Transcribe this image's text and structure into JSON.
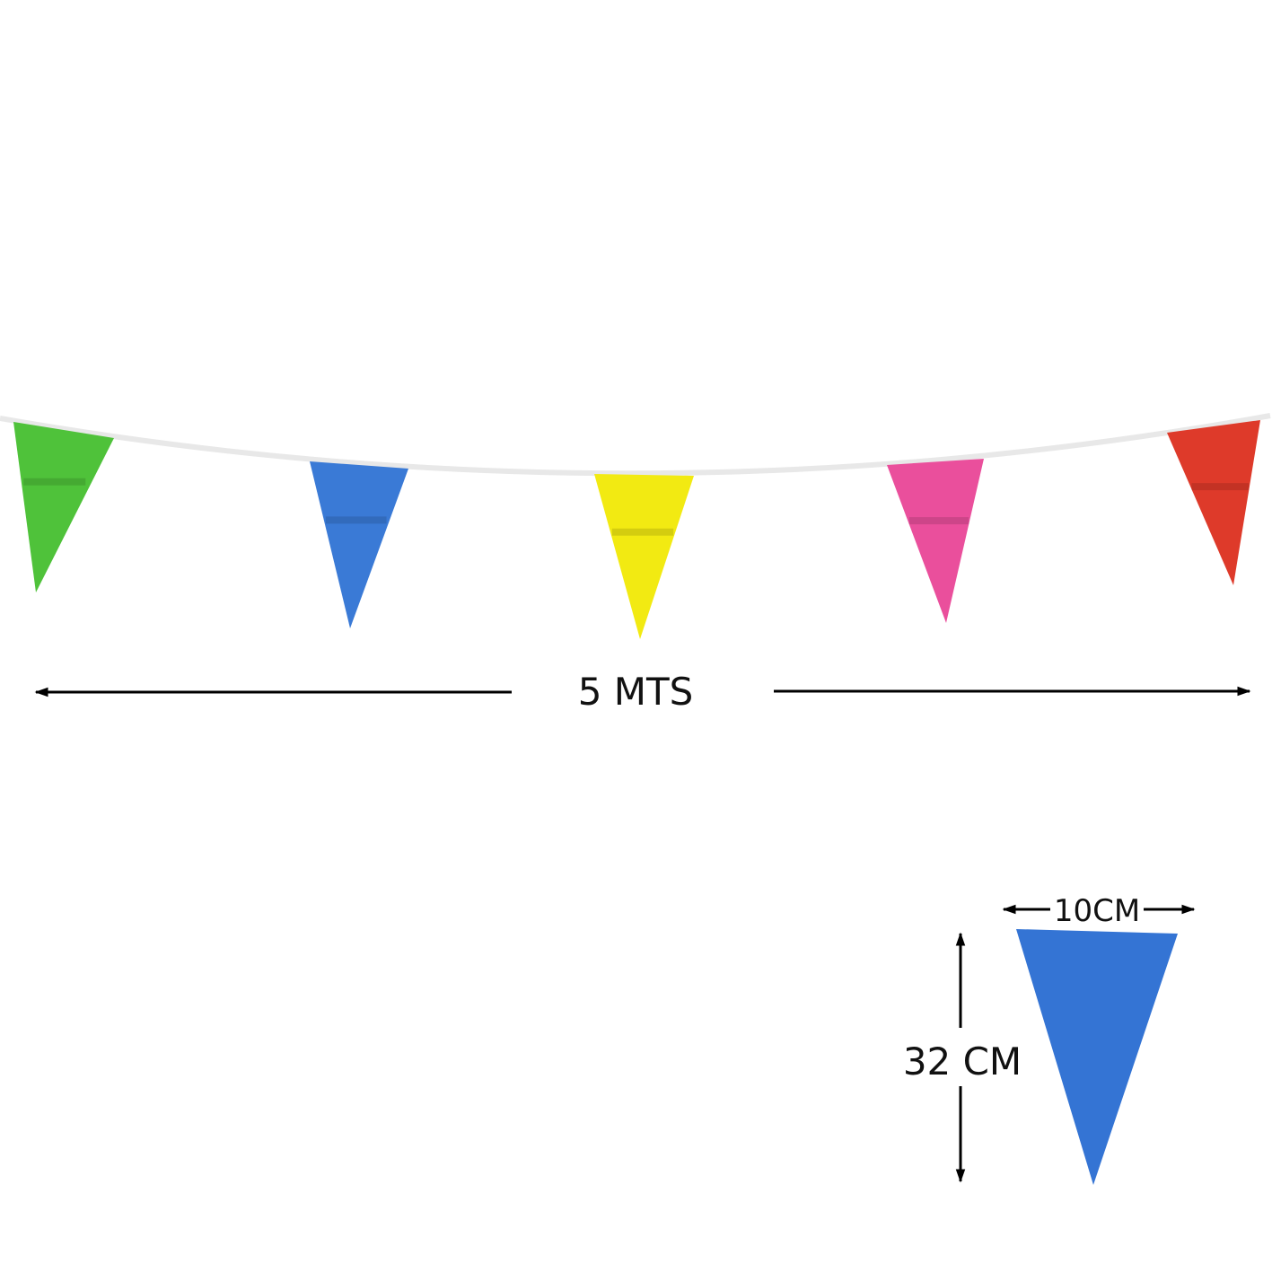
{
  "length_label": "5 MTS",
  "width_label": "10CM",
  "height_label": "32 CM",
  "colors": {
    "green": "#4fc23a",
    "blue": "#3a7ad6",
    "yellow": "#f2ea12",
    "pink": "#ea4f9c",
    "red": "#de3a2a",
    "detail_blue": "#3474d4",
    "string": "#f4f4f4",
    "arrow": "#000000"
  },
  "flags": [
    "green",
    "blue",
    "yellow",
    "pink",
    "red"
  ]
}
